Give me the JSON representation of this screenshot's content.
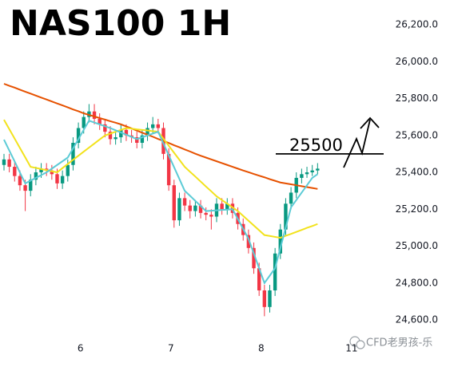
{
  "chart_data": {
    "type": "candlestick",
    "title": "NAS100 1H",
    "open": [
      25440,
      25470,
      25430,
      25380,
      25330,
      25300,
      25360,
      25400,
      25420,
      25410,
      25390,
      25340,
      25380,
      25440,
      25560,
      25640,
      25700,
      25730,
      25690,
      25660,
      25620,
      25580,
      25590,
      25630,
      25600,
      25590,
      25560,
      25600,
      25640,
      25660,
      25640,
      25500,
      25330,
      25140,
      25260,
      25220,
      25190,
      25220,
      25180,
      25170,
      25160,
      25230,
      25200,
      25230,
      25180,
      25120,
      25060,
      24990,
      24880,
      24760,
      24670,
      24760,
      24960,
      25090,
      25230,
      25290,
      25370,
      25390,
      25400,
      25410
    ],
    "high": [
      25500,
      25500,
      25460,
      25410,
      25360,
      25390,
      25430,
      25450,
      25450,
      25440,
      25420,
      25410,
      25470,
      25590,
      25670,
      25730,
      25770,
      25770,
      25720,
      25690,
      25650,
      25620,
      25660,
      25660,
      25630,
      25620,
      25630,
      25670,
      25700,
      25690,
      25670,
      25530,
      25360,
      25290,
      25290,
      25250,
      25250,
      25250,
      25210,
      25200,
      25260,
      25260,
      25260,
      25260,
      25210,
      25150,
      25090,
      25020,
      24910,
      24790,
      24790,
      24990,
      25120,
      25260,
      25320,
      25400,
      25420,
      25430,
      25440,
      25450
    ],
    "low": [
      25410,
      25400,
      25350,
      25300,
      25190,
      25270,
      25330,
      25370,
      25380,
      25360,
      25310,
      25310,
      25350,
      25410,
      25530,
      25610,
      25670,
      25660,
      25630,
      25590,
      25550,
      25550,
      25560,
      25570,
      25560,
      25530,
      25530,
      25570,
      25610,
      25610,
      25470,
      25300,
      25100,
      25110,
      25190,
      25150,
      25160,
      25150,
      25140,
      25090,
      25130,
      25170,
      25170,
      25150,
      25090,
      25030,
      24960,
      24850,
      24730,
      24620,
      24640,
      24730,
      24930,
      25060,
      25200,
      25260,
      25340,
      25370,
      25380,
      25390
    ],
    "close": [
      25470,
      25430,
      25380,
      25330,
      25300,
      25360,
      25400,
      25420,
      25410,
      25390,
      25340,
      25380,
      25440,
      25560,
      25640,
      25700,
      25730,
      25690,
      25660,
      25620,
      25580,
      25590,
      25630,
      25600,
      25590,
      25560,
      25600,
      25640,
      25660,
      25640,
      25500,
      25330,
      25140,
      25260,
      25220,
      25190,
      25220,
      25180,
      25170,
      25160,
      25230,
      25200,
      25230,
      25180,
      25120,
      25060,
      24990,
      24880,
      24760,
      24670,
      24760,
      24960,
      25090,
      25230,
      25290,
      25370,
      25390,
      25400,
      25410,
      25420
    ],
    "up_color": "#089981",
    "down_color": "#f23645",
    "lines": [
      {
        "color": "#e65100",
        "values": [
          25880,
          25869,
          25859,
          25848,
          25837,
          25827,
          25816,
          25805,
          25795,
          25784,
          25773,
          25763,
          25752,
          25741,
          25731,
          25720,
          25711,
          25703,
          25694,
          25686,
          25677,
          25669,
          25660,
          25649,
          25638,
          25626,
          25615,
          25604,
          25593,
          25581,
          25570,
          25559,
          25547,
          25536,
          25524,
          25513,
          25501,
          25490,
          25480,
          25470,
          25460,
          25450,
          25440,
          25430,
          25420,
          25410,
          25401,
          25391,
          25382,
          25373,
          25363,
          25354,
          25345,
          25340,
          25335,
          25330,
          25325,
          25320,
          25315,
          25310
        ]
      },
      {
        "color": "#f2e21c",
        "values": [
          25685,
          25634,
          25583,
          25532,
          25481,
          25430,
          25424,
          25418,
          25412,
          25406,
          25400,
          25423,
          25445,
          25468,
          25490,
          25512,
          25534,
          25556,
          25578,
          25600,
          25610,
          25620,
          25630,
          25640,
          25637,
          25633,
          25630,
          25627,
          25623,
          25620,
          25582,
          25544,
          25506,
          25468,
          25430,
          25403,
          25377,
          25350,
          25323,
          25297,
          25270,
          25250,
          25230,
          25210,
          25190,
          25164,
          25138,
          25112,
          25086,
          25060,
          25055,
          25050,
          25045,
          25056,
          25066,
          25077,
          25088,
          25099,
          25109,
          25120
        ]
      },
      {
        "color": "#5ccbd6",
        "values": [
          25577,
          25518,
          25459,
          25399,
          25340,
          25355,
          25370,
          25385,
          25400,
          25420,
          25440,
          25460,
          25480,
          25530,
          25580,
          25630,
          25680,
          25670,
          25660,
          25650,
          25640,
          25628,
          25616,
          25604,
          25592,
          25580,
          25590,
          25600,
          25610,
          25620,
          25556,
          25492,
          25428,
          25364,
          25300,
          25273,
          25245,
          25218,
          25190,
          25192,
          25194,
          25196,
          25198,
          25200,
          25147,
          25093,
          25040,
          24960,
          24880,
          24800,
          24840,
          24880,
          24990,
          25100,
          25210,
          25250,
          25290,
          25330,
          25370,
          25390
        ]
      }
    ],
    "level": 25500,
    "xlim": [
      -0.75,
      71.25
    ],
    "xticks": [
      {
        "value": 14.4,
        "label": "6"
      },
      {
        "value": 31.4,
        "label": "7"
      },
      {
        "value": 48.4,
        "label": "8"
      },
      {
        "value": 65.4,
        "label": "11"
      }
    ],
    "ylim": [
      24500,
      26300
    ],
    "yticks": [
      {
        "value": 24600,
        "label": "24,600.0"
      },
      {
        "value": 24800,
        "label": "24,800.0"
      },
      {
        "value": 25000,
        "label": "25,000.0"
      },
      {
        "value": 25200,
        "label": "25,200.0"
      },
      {
        "value": 25400,
        "label": "25,400.0"
      },
      {
        "value": 25600,
        "label": "25,600.0"
      },
      {
        "value": 25800,
        "label": "25,800.0"
      },
      {
        "value": 26000,
        "label": "26,000.0"
      },
      {
        "value": 26200,
        "label": "26,200.0"
      }
    ],
    "grid": false,
    "watermark": "CFD老男孩-乐"
  }
}
